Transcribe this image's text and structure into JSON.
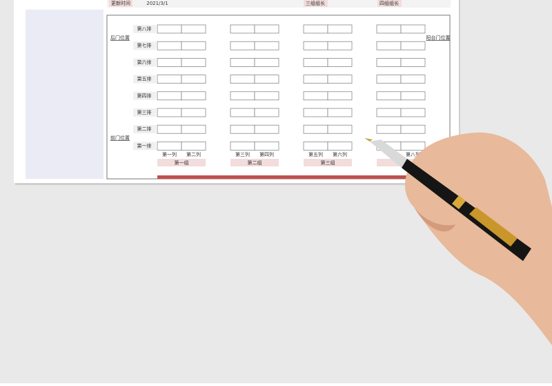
{
  "header": {
    "update_label": "更新时间",
    "update_date": "2021/3/1",
    "leader_3": "三组组长",
    "leader_4": "四组组长"
  },
  "doors": {
    "back": "后门位置",
    "balcony": "阳台门位置",
    "front": "前门位置"
  },
  "rows": [
    "第八排",
    "第七排",
    "第六排",
    "第五排",
    "第四排",
    "第三排",
    "第二排",
    "第一排"
  ],
  "columns": [
    "第一列",
    "第二列",
    "第三列",
    "第四列",
    "第五列",
    "第六列",
    null,
    "第八列"
  ],
  "groups": [
    "第一组",
    "第二组",
    "第三组",
    null
  ]
}
